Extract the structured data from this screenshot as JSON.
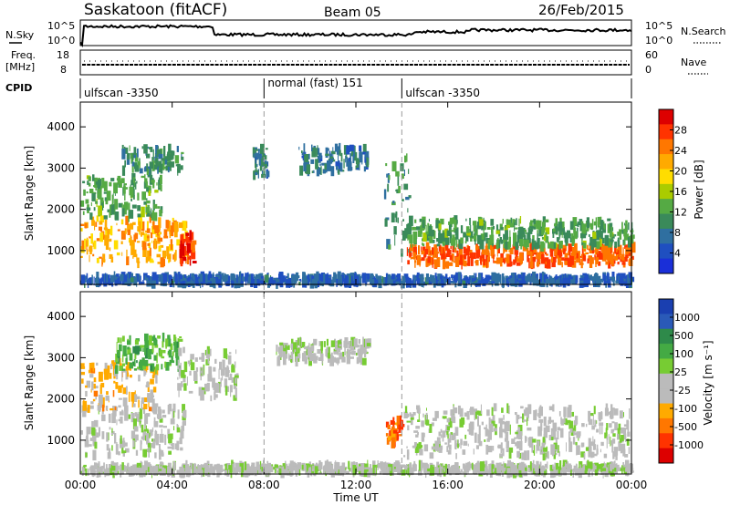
{
  "header": {
    "title": "Saskatoon (fitACF)",
    "beam": "Beam 05",
    "date": "26/Feb/2015"
  },
  "noise_panel": {
    "left_label": "N.Sky",
    "left_ticks": [
      "10^5",
      "10^0"
    ],
    "right_label": "N.Search",
    "right_ticks": [
      "10^5",
      "10^0"
    ]
  },
  "freq_panel": {
    "left_label": "Freq.",
    "left_unit": "[MHz]",
    "left_ticks": [
      "18",
      "8"
    ],
    "right_label": "Nave",
    "right_ticks": [
      "60",
      "0"
    ]
  },
  "cpid_panel": {
    "label": "CPID",
    "segments": [
      {
        "label": "ulfscan -3350",
        "start_hour": 0,
        "end_hour": 8
      },
      {
        "label": "normal (fast) 151",
        "start_hour": 8,
        "end_hour": 14
      },
      {
        "label": "ulfscan -3350",
        "start_hour": 14,
        "end_hour": 24
      }
    ]
  },
  "power_panel": {
    "ylabel": "Slant Range [km]",
    "yticks": [
      "1000",
      "2000",
      "3000",
      "4000"
    ],
    "colorbar_label": "Power [dB]",
    "colorbar_ticks": [
      "28",
      "24",
      "20",
      "16",
      "12",
      "8",
      "4"
    ],
    "colorbar_colors": [
      "#dd0000",
      "#ff3300",
      "#ff7700",
      "#ffaa00",
      "#ffdd00",
      "#aacc00",
      "#55aa44",
      "#3a8a5a",
      "#2f6fa0",
      "#1f4fc0",
      "#1a2fd8"
    ]
  },
  "velocity_panel": {
    "ylabel": "Slant Range [km]",
    "yticks": [
      "1000",
      "2000",
      "3000",
      "4000"
    ],
    "colorbar_label": "Velocity [m s⁻¹]",
    "colorbar_ticks": [
      "1000",
      "500",
      "100",
      "25",
      "-25",
      "-100",
      "-500",
      "-1000"
    ],
    "colorbar_colors": [
      "#1a3fb0",
      "#2a5ab8",
      "#2e8a4a",
      "#44aa44",
      "#77cc33",
      "#bbbbbb",
      "#bbbbbb",
      "#ffaa00",
      "#ff7700",
      "#ff3300",
      "#dd0000"
    ]
  },
  "xaxis": {
    "label": "Time UT",
    "ticks": [
      "00:00",
      "04:00",
      "08:00",
      "12:00",
      "16:00",
      "20:00",
      "00:00"
    ]
  },
  "chart_data": [
    {
      "type": "heatmap",
      "title": "Saskatoon (fitACF)",
      "xlabel": "Time UT",
      "ylabel": "Slant Range [km]",
      "xlim": [
        0,
        24
      ],
      "ylim": [
        180,
        4600
      ],
      "colorbar": {
        "label": "Power [dB]",
        "range": [
          0,
          32
        ]
      },
      "echo_regions": [
        {
          "t0": 0,
          "t1": 4.6,
          "r0": 700,
          "r1": 1800,
          "value": 22
        },
        {
          "t0": 0,
          "t1": 3.5,
          "r0": 1800,
          "r1": 2800,
          "value": 12
        },
        {
          "t0": 4.3,
          "t1": 4.9,
          "r0": 700,
          "r1": 1400,
          "value": 28
        },
        {
          "t0": 1.8,
          "t1": 4.4,
          "r0": 2900,
          "r1": 3500,
          "value": 10
        },
        {
          "t0": 7.5,
          "t1": 8.1,
          "r0": 2800,
          "r1": 3500,
          "value": 8
        },
        {
          "t0": 9.5,
          "t1": 12.5,
          "r0": 2900,
          "r1": 3500,
          "value": 8
        },
        {
          "t0": 13.2,
          "t1": 14.3,
          "r0": 900,
          "r1": 3300,
          "value": 10
        },
        {
          "t0": 14.2,
          "t1": 24,
          "r0": 650,
          "r1": 1100,
          "value": 26
        },
        {
          "t0": 14.2,
          "t1": 24,
          "r0": 1100,
          "r1": 1750,
          "value": 12
        },
        {
          "t0": 0,
          "t1": 24,
          "r0": 200,
          "r1": 380,
          "value": 6
        }
      ]
    },
    {
      "type": "heatmap",
      "xlabel": "Time UT",
      "ylabel": "Slant Range [km]",
      "xlim": [
        0,
        24
      ],
      "ylim": [
        180,
        4600
      ],
      "colorbar": {
        "label": "Velocity [m s⁻¹]",
        "range": [
          -1000,
          1000
        ]
      },
      "echo_regions": [
        {
          "t0": 0,
          "t1": 4.5,
          "r0": 600,
          "r1": 1800,
          "value": 0
        },
        {
          "t0": 0,
          "t1": 3.3,
          "r0": 1700,
          "r1": 2900,
          "value": -300
        },
        {
          "t0": 1.5,
          "t1": 4.3,
          "r0": 2700,
          "r1": 3500,
          "value": 300
        },
        {
          "t0": 4.2,
          "t1": 6.8,
          "r0": 2000,
          "r1": 3200,
          "value": 0
        },
        {
          "t0": 8.5,
          "t1": 12.5,
          "r0": 2900,
          "r1": 3400,
          "value": 0
        },
        {
          "t0": 13.3,
          "t1": 14.0,
          "r0": 900,
          "r1": 1500,
          "value": -600
        },
        {
          "t0": 14.0,
          "t1": 24,
          "r0": 600,
          "r1": 1800,
          "value": 0
        },
        {
          "t0": 0,
          "t1": 24,
          "r0": 200,
          "r1": 400,
          "value": 0
        }
      ]
    }
  ]
}
